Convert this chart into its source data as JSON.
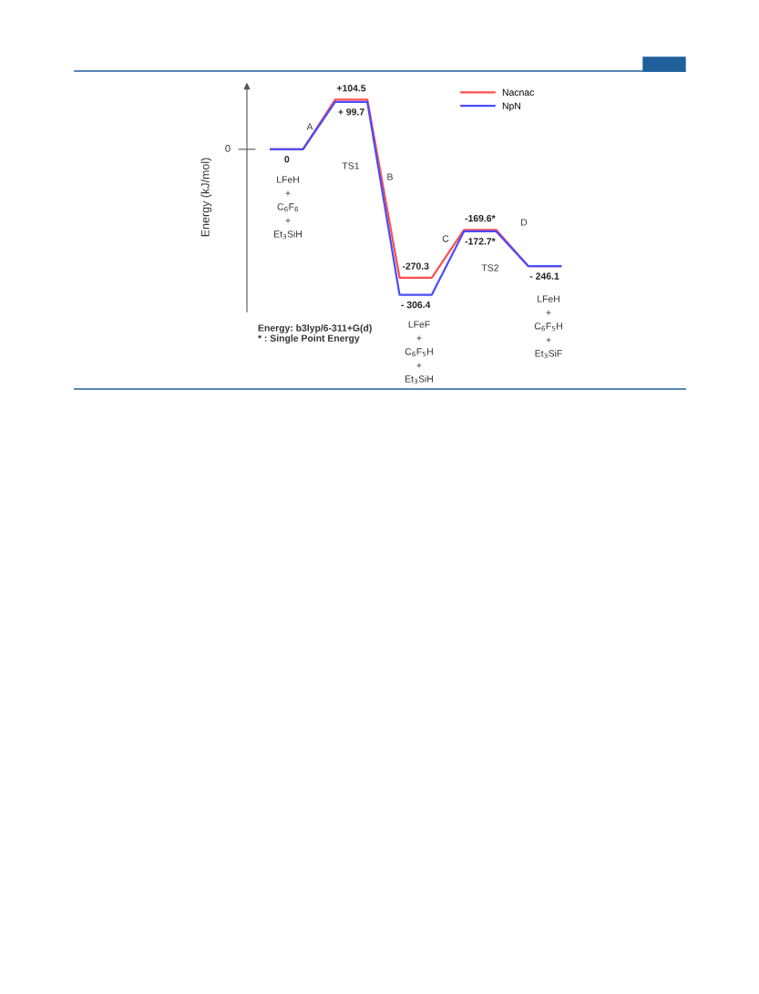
{
  "chart_data": {
    "type": "line",
    "ylabel": "Energy (kJ/mol)",
    "categories": [
      null,
      null,
      null,
      null,
      null,
      null,
      null,
      null,
      null,
      null
    ],
    "grid": false,
    "ref_lines": [
      {
        "axis": "y",
        "value": 0,
        "label": "0",
        "color": "#555555"
      }
    ],
    "legend": "top right",
    "marker": "none",
    "line_style": "solid",
    "series": [
      {
        "name": "Nacnac",
        "color": "#ff4d4d",
        "values": [
          0,
          0,
          104.5,
          104.5,
          -270.3,
          -270.3,
          -169.6,
          -169.6,
          -246.1,
          -246.1
        ],
        "value_labels": [
          null,
          null,
          "+104.5",
          null,
          "-270.3",
          null,
          "-169.6*",
          null,
          null,
          null
        ]
      },
      {
        "name": "NpN",
        "color": "#4b4bff",
        "values": [
          0,
          0,
          99.7,
          99.7,
          -306.4,
          -306.4,
          -172.7,
          -172.7,
          -246.1,
          -246.1
        ],
        "value_labels": [
          "0",
          null,
          "+ 99.7",
          null,
          "- 306.4",
          null,
          "-172.7*",
          null,
          "- 246.1",
          null
        ]
      }
    ],
    "annotations": [
      "A",
      "B",
      "C",
      "D",
      "TS1",
      "TS2",
      "LFeH\n+\nC$_{6}$F$_{6}$\n+\nEt$_{3}$SiH",
      "LFeF\n+\nC$_{6}$F$_{5}$H\n+\nEt$_{3}$SiH",
      "LFeH\n+\nC$_{6}$F$_{5}$H\n+\nEt$_{3}$SiF",
      "Energy: b3lyp/6-311+G(d)\n* : Single Point Energy"
    ]
  }
}
